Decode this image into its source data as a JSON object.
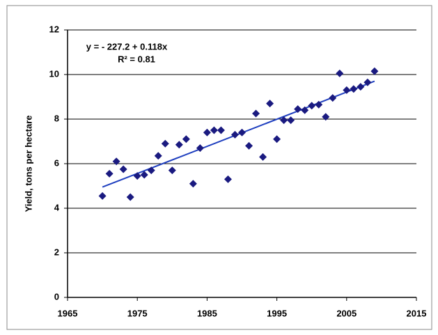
{
  "chart_data": {
    "type": "scatter",
    "y_label": "Yield, tons per hectare",
    "annotations": [
      "y = - 227.2 + 0.118x",
      "R² = 0.81"
    ],
    "xlim": [
      1965,
      2015
    ],
    "xticks": [
      1965,
      1975,
      1985,
      1995,
      2005,
      2015
    ],
    "ylim": [
      0,
      12
    ],
    "yticks": [
      0,
      2,
      4,
      6,
      8,
      10,
      12
    ],
    "grid": true,
    "color": "#1a1a80",
    "x": [
      1970,
      1971,
      1972,
      1973,
      1974,
      1975,
      1976,
      1977,
      1978,
      1979,
      1980,
      1981,
      1982,
      1983,
      1984,
      1985,
      1986,
      1987,
      1988,
      1989,
      1990,
      1991,
      1992,
      1993,
      1994,
      1995,
      1996,
      1997,
      1998,
      1999,
      2000,
      2001,
      2002,
      2003,
      2004,
      2005,
      2006,
      2007,
      2008,
      2009
    ],
    "values": [
      4.55,
      5.55,
      6.1,
      5.75,
      4.5,
      5.45,
      5.5,
      5.7,
      6.35,
      6.9,
      5.7,
      6.85,
      7.1,
      5.1,
      6.7,
      7.4,
      7.5,
      7.5,
      5.3,
      7.3,
      7.4,
      6.8,
      8.25,
      6.3,
      8.7,
      7.1,
      7.95,
      7.95,
      8.45,
      8.4,
      8.6,
      8.65,
      8.1,
      8.95,
      10.05,
      9.3,
      9.35,
      9.45,
      9.65,
      10.15
    ],
    "trendline": {
      "x": [
        1970,
        2009
      ],
      "values": [
        4.95,
        9.7
      ],
      "color": "#1f3fbf"
    }
  }
}
